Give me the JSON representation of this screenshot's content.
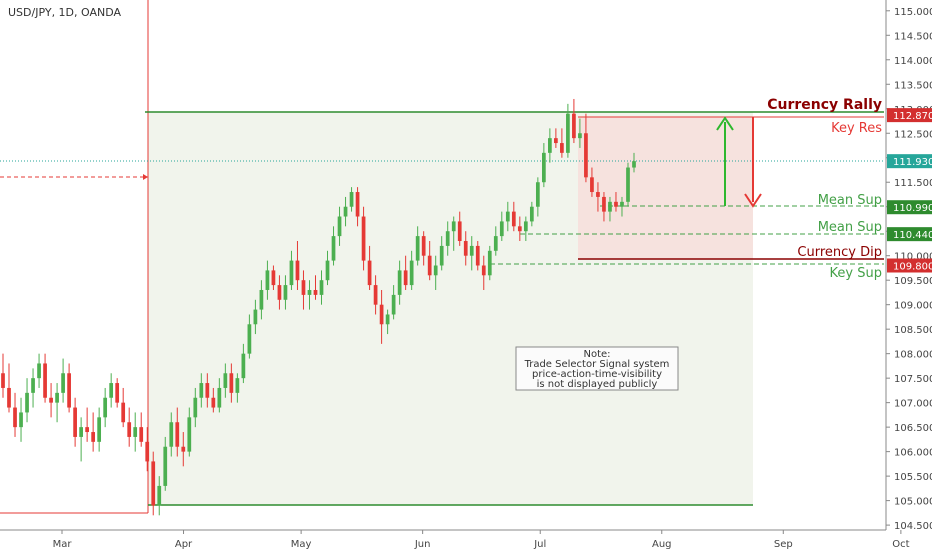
{
  "chart_data": {
    "type": "candlestick",
    "title": "USD/JPY, 1D, OANDA",
    "y_axis": {
      "min": 104.4,
      "max": 115.2,
      "ticks": [
        "115.000",
        "114.500",
        "114.000",
        "113.500",
        "113.000",
        "112.500",
        "112.000",
        "111.500",
        "111.000",
        "110.500",
        "110.000",
        "109.500",
        "109.000",
        "108.500",
        "108.000",
        "107.500",
        "107.000",
        "106.500",
        "106.000",
        "105.500",
        "105.000",
        "104.500"
      ]
    },
    "x_axis": {
      "labels": [
        {
          "label": "Mar",
          "date": "2017-03-01"
        },
        {
          "label": "Apr",
          "date": "2017-04-01"
        },
        {
          "label": "May",
          "date": "2017-05-01"
        },
        {
          "label": "Jun",
          "date": "2017-06-01"
        },
        {
          "label": "Jul",
          "date": "2017-07-01"
        },
        {
          "label": "Aug",
          "date": "2017-08-01"
        },
        {
          "label": "Sep",
          "date": "2017-09-01"
        },
        {
          "label": "Oct",
          "date": "2017-10-01"
        }
      ]
    },
    "price_badges": [
      {
        "text": "112.870",
        "value": 112.87,
        "color": "#d32f2f"
      },
      {
        "text": "111.930",
        "value": 111.93,
        "color": "#26a69a"
      },
      {
        "text": "110.990",
        "value": 110.99,
        "color": "#2e8b2e"
      },
      {
        "text": "110.440",
        "value": 110.44,
        "color": "#2e8b2e"
      },
      {
        "text": "109.800",
        "value": 109.8,
        "color": "#d32f2f"
      }
    ],
    "levels": [
      {
        "label": "Currency Rally",
        "value": 112.95,
        "color": "#8b0000"
      },
      {
        "label": "Key Res",
        "value": 112.87,
        "color": "#e53935"
      },
      {
        "label": "Mean Sup",
        "value": 110.99,
        "color": "#43a047"
      },
      {
        "label": "Mean Sup",
        "value": 110.44,
        "color": "#43a047"
      },
      {
        "label": "Currency Dip",
        "value": 109.9,
        "color": "#8b0000"
      },
      {
        "label": "Key Sup",
        "value": 109.8,
        "color": "#43a047"
      }
    ],
    "note": {
      "lines": [
        "Note:",
        "Trade Selector Signal system",
        "price-action-time-visibility",
        "is not displayed publicly"
      ]
    },
    "candles": [
      {
        "o": 107.6,
        "h": 108.0,
        "l": 107.1,
        "c": 107.3
      },
      {
        "o": 107.3,
        "h": 107.8,
        "l": 106.8,
        "c": 106.9
      },
      {
        "o": 106.9,
        "h": 107.2,
        "l": 106.3,
        "c": 106.5
      },
      {
        "o": 106.5,
        "h": 107.1,
        "l": 106.2,
        "c": 106.8
      },
      {
        "o": 106.8,
        "h": 107.5,
        "l": 106.6,
        "c": 107.2
      },
      {
        "o": 107.2,
        "h": 107.7,
        "l": 106.9,
        "c": 107.5
      },
      {
        "o": 107.5,
        "h": 108.0,
        "l": 107.3,
        "c": 107.8
      },
      {
        "o": 107.8,
        "h": 108.0,
        "l": 107.0,
        "c": 107.1
      },
      {
        "o": 107.1,
        "h": 107.4,
        "l": 106.7,
        "c": 107.0
      },
      {
        "o": 107.0,
        "h": 107.4,
        "l": 106.6,
        "c": 107.2
      },
      {
        "o": 107.2,
        "h": 107.9,
        "l": 107.0,
        "c": 107.6
      },
      {
        "o": 107.6,
        "h": 107.8,
        "l": 106.8,
        "c": 106.9
      },
      {
        "o": 106.9,
        "h": 107.1,
        "l": 106.1,
        "c": 106.3
      },
      {
        "o": 106.3,
        "h": 106.7,
        "l": 105.8,
        "c": 106.5
      },
      {
        "o": 106.5,
        "h": 106.9,
        "l": 106.2,
        "c": 106.4
      },
      {
        "o": 106.4,
        "h": 106.8,
        "l": 106.0,
        "c": 106.2
      },
      {
        "o": 106.2,
        "h": 106.9,
        "l": 106.0,
        "c": 106.7
      },
      {
        "o": 106.7,
        "h": 107.3,
        "l": 106.5,
        "c": 107.1
      },
      {
        "o": 107.1,
        "h": 107.6,
        "l": 106.9,
        "c": 107.4
      },
      {
        "o": 107.4,
        "h": 107.5,
        "l": 106.9,
        "c": 107.0
      },
      {
        "o": 107.0,
        "h": 107.3,
        "l": 106.5,
        "c": 106.6
      },
      {
        "o": 106.6,
        "h": 106.9,
        "l": 106.1,
        "c": 106.3
      },
      {
        "o": 106.3,
        "h": 106.8,
        "l": 106.0,
        "c": 106.5
      },
      {
        "o": 106.5,
        "h": 106.8,
        "l": 106.1,
        "c": 106.2
      },
      {
        "o": 106.2,
        "h": 106.5,
        "l": 105.6,
        "c": 105.8
      },
      {
        "o": 105.8,
        "h": 106.0,
        "l": 104.7,
        "c": 104.9
      },
      {
        "o": 104.9,
        "h": 105.5,
        "l": 104.7,
        "c": 105.3
      },
      {
        "o": 105.3,
        "h": 106.3,
        "l": 105.2,
        "c": 106.1
      },
      {
        "o": 106.1,
        "h": 106.8,
        "l": 105.9,
        "c": 106.6
      },
      {
        "o": 106.6,
        "h": 106.9,
        "l": 105.9,
        "c": 106.1
      },
      {
        "o": 106.1,
        "h": 106.4,
        "l": 105.7,
        "c": 106.0
      },
      {
        "o": 106.0,
        "h": 106.9,
        "l": 105.9,
        "c": 106.7
      },
      {
        "o": 106.7,
        "h": 107.3,
        "l": 106.5,
        "c": 107.1
      },
      {
        "o": 107.1,
        "h": 107.6,
        "l": 106.9,
        "c": 107.4
      },
      {
        "o": 107.4,
        "h": 107.6,
        "l": 106.9,
        "c": 107.1
      },
      {
        "o": 107.1,
        "h": 107.3,
        "l": 106.8,
        "c": 106.9
      },
      {
        "o": 106.9,
        "h": 107.5,
        "l": 106.8,
        "c": 107.3
      },
      {
        "o": 107.3,
        "h": 107.8,
        "l": 107.1,
        "c": 107.6
      },
      {
        "o": 107.6,
        "h": 107.8,
        "l": 107.0,
        "c": 107.2
      },
      {
        "o": 107.2,
        "h": 107.6,
        "l": 107.0,
        "c": 107.5
      },
      {
        "o": 107.5,
        "h": 108.2,
        "l": 107.4,
        "c": 108.0
      },
      {
        "o": 108.0,
        "h": 108.8,
        "l": 107.9,
        "c": 108.6
      },
      {
        "o": 108.6,
        "h": 109.1,
        "l": 108.4,
        "c": 108.9
      },
      {
        "o": 108.9,
        "h": 109.5,
        "l": 108.7,
        "c": 109.3
      },
      {
        "o": 109.3,
        "h": 109.9,
        "l": 109.1,
        "c": 109.7
      },
      {
        "o": 109.7,
        "h": 109.8,
        "l": 109.3,
        "c": 109.4
      },
      {
        "o": 109.4,
        "h": 109.6,
        "l": 108.9,
        "c": 109.1
      },
      {
        "o": 109.1,
        "h": 109.6,
        "l": 108.9,
        "c": 109.4
      },
      {
        "o": 109.4,
        "h": 110.1,
        "l": 109.3,
        "c": 109.9
      },
      {
        "o": 109.9,
        "h": 110.3,
        "l": 109.3,
        "c": 109.5
      },
      {
        "o": 109.5,
        "h": 109.7,
        "l": 108.9,
        "c": 109.2
      },
      {
        "o": 109.2,
        "h": 109.5,
        "l": 108.9,
        "c": 109.3
      },
      {
        "o": 109.3,
        "h": 109.6,
        "l": 109.1,
        "c": 109.2
      },
      {
        "o": 109.2,
        "h": 109.7,
        "l": 109.0,
        "c": 109.5
      },
      {
        "o": 109.5,
        "h": 110.1,
        "l": 109.4,
        "c": 109.9
      },
      {
        "o": 109.9,
        "h": 110.6,
        "l": 109.8,
        "c": 110.4
      },
      {
        "o": 110.4,
        "h": 111.0,
        "l": 110.2,
        "c": 110.8
      },
      {
        "o": 110.8,
        "h": 111.2,
        "l": 110.6,
        "c": 111.0
      },
      {
        "o": 111.0,
        "h": 111.4,
        "l": 110.9,
        "c": 111.3
      },
      {
        "o": 111.3,
        "h": 111.4,
        "l": 110.6,
        "c": 110.8
      },
      {
        "o": 110.8,
        "h": 111.0,
        "l": 109.7,
        "c": 109.9
      },
      {
        "o": 109.9,
        "h": 110.2,
        "l": 109.3,
        "c": 109.4
      },
      {
        "o": 109.4,
        "h": 109.6,
        "l": 108.8,
        "c": 109.0
      },
      {
        "o": 109.0,
        "h": 109.3,
        "l": 108.2,
        "c": 108.6
      },
      {
        "o": 108.6,
        "h": 108.9,
        "l": 108.4,
        "c": 108.8
      },
      {
        "o": 108.8,
        "h": 109.4,
        "l": 108.7,
        "c": 109.2
      },
      {
        "o": 109.2,
        "h": 109.9,
        "l": 109.0,
        "c": 109.7
      },
      {
        "o": 109.7,
        "h": 110.0,
        "l": 109.3,
        "c": 109.4
      },
      {
        "o": 109.4,
        "h": 110.1,
        "l": 109.3,
        "c": 109.9
      },
      {
        "o": 109.9,
        "h": 110.6,
        "l": 109.8,
        "c": 110.4
      },
      {
        "o": 110.4,
        "h": 110.5,
        "l": 109.8,
        "c": 110.0
      },
      {
        "o": 110.0,
        "h": 110.3,
        "l": 109.5,
        "c": 109.6
      },
      {
        "o": 109.6,
        "h": 110.0,
        "l": 109.3,
        "c": 109.8
      },
      {
        "o": 109.8,
        "h": 110.4,
        "l": 109.7,
        "c": 110.2
      },
      {
        "o": 110.2,
        "h": 110.7,
        "l": 110.0,
        "c": 110.5
      },
      {
        "o": 110.5,
        "h": 110.8,
        "l": 110.1,
        "c": 110.7
      },
      {
        "o": 110.7,
        "h": 110.9,
        "l": 110.2,
        "c": 110.3
      },
      {
        "o": 110.3,
        "h": 110.5,
        "l": 109.8,
        "c": 110.0
      },
      {
        "o": 110.0,
        "h": 110.4,
        "l": 109.7,
        "c": 110.2
      },
      {
        "o": 110.2,
        "h": 110.3,
        "l": 109.7,
        "c": 109.8
      },
      {
        "o": 109.8,
        "h": 110.0,
        "l": 109.3,
        "c": 109.6
      },
      {
        "o": 109.6,
        "h": 110.2,
        "l": 109.5,
        "c": 110.1
      },
      {
        "o": 110.1,
        "h": 110.6,
        "l": 110.0,
        "c": 110.4
      },
      {
        "o": 110.4,
        "h": 110.9,
        "l": 110.3,
        "c": 110.7
      },
      {
        "o": 110.7,
        "h": 111.1,
        "l": 110.5,
        "c": 110.9
      },
      {
        "o": 110.9,
        "h": 111.1,
        "l": 110.5,
        "c": 110.6
      },
      {
        "o": 110.6,
        "h": 110.8,
        "l": 110.3,
        "c": 110.5
      },
      {
        "o": 110.5,
        "h": 110.8,
        "l": 110.3,
        "c": 110.7
      },
      {
        "o": 110.7,
        "h": 111.1,
        "l": 110.6,
        "c": 111.0
      },
      {
        "o": 111.0,
        "h": 111.6,
        "l": 110.8,
        "c": 111.5
      },
      {
        "o": 111.5,
        "h": 112.3,
        "l": 111.4,
        "c": 112.1
      },
      {
        "o": 112.1,
        "h": 112.6,
        "l": 111.9,
        "c": 112.4
      },
      {
        "o": 112.4,
        "h": 112.6,
        "l": 112.2,
        "c": 112.3
      },
      {
        "o": 112.3,
        "h": 112.6,
        "l": 112.0,
        "c": 112.1
      },
      {
        "o": 112.1,
        "h": 113.1,
        "l": 112.0,
        "c": 112.9
      },
      {
        "o": 112.9,
        "h": 113.2,
        "l": 112.3,
        "c": 112.4
      },
      {
        "o": 112.4,
        "h": 112.8,
        "l": 112.2,
        "c": 112.5
      },
      {
        "o": 112.5,
        "h": 112.9,
        "l": 111.5,
        "c": 111.6
      },
      {
        "o": 111.6,
        "h": 111.8,
        "l": 111.2,
        "c": 111.3
      },
      {
        "o": 111.3,
        "h": 111.5,
        "l": 110.9,
        "c": 111.2
      },
      {
        "o": 111.2,
        "h": 111.3,
        "l": 110.7,
        "c": 110.9
      },
      {
        "o": 110.9,
        "h": 111.2,
        "l": 110.7,
        "c": 111.1
      },
      {
        "o": 111.1,
        "h": 111.3,
        "l": 110.9,
        "c": 111.0
      },
      {
        "o": 111.0,
        "h": 111.2,
        "l": 110.8,
        "c": 111.1
      },
      {
        "o": 111.1,
        "h": 111.9,
        "l": 111.0,
        "c": 111.8
      },
      {
        "o": 111.8,
        "h": 112.1,
        "l": 111.7,
        "c": 111.93
      }
    ]
  }
}
